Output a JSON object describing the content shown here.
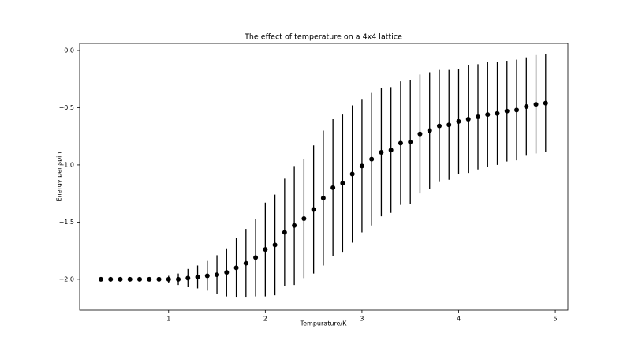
{
  "chart_data": {
    "type": "scatter",
    "title": "The effect of temperature on a 4x4 lattice",
    "x_label": "Tempurature/K",
    "y_label": "Energy per spin",
    "color": "#000000",
    "x": [
      0.3,
      0.4,
      0.5,
      0.6,
      0.7,
      0.8,
      0.9,
      1.0,
      1.1,
      1.2,
      1.3,
      1.4,
      1.5,
      1.6,
      1.7,
      1.8,
      1.9,
      2.0,
      2.1,
      2.2,
      2.3,
      2.4,
      2.5,
      2.6,
      2.7,
      2.8,
      2.9,
      3.0,
      3.1,
      3.2,
      3.3,
      3.4,
      3.5,
      3.6,
      3.7,
      3.8,
      3.9,
      4.0,
      4.1,
      4.2,
      4.3,
      4.4,
      4.5,
      4.6,
      4.7,
      4.8,
      4.9
    ],
    "values": [
      -2.0,
      -2.0,
      -2.0,
      -2.0,
      -2.0,
      -2.0,
      -2.0,
      -2.0,
      -2.0,
      -1.99,
      -1.98,
      -1.97,
      -1.96,
      -1.94,
      -1.9,
      -1.86,
      -1.81,
      -1.74,
      -1.7,
      -1.59,
      -1.53,
      -1.47,
      -1.39,
      -1.29,
      -1.2,
      -1.16,
      -1.08,
      -1.01,
      -0.95,
      -0.89,
      -0.87,
      -0.81,
      -0.8,
      -0.73,
      -0.7,
      -0.66,
      -0.65,
      -0.62,
      -0.6,
      -0.58,
      -0.56,
      -0.55,
      -0.53,
      -0.52,
      -0.49,
      -0.47,
      -0.46
    ],
    "errors": [
      0,
      0,
      0,
      0,
      0,
      0,
      0.02,
      0.03,
      0.05,
      0.08,
      0.1,
      0.13,
      0.17,
      0.21,
      0.26,
      0.3,
      0.34,
      0.41,
      0.44,
      0.47,
      0.52,
      0.52,
      0.56,
      0.59,
      0.6,
      0.6,
      0.6,
      0.58,
      0.58,
      0.56,
      0.55,
      0.54,
      0.54,
      0.52,
      0.51,
      0.49,
      0.48,
      0.46,
      0.47,
      0.46,
      0.46,
      0.45,
      0.44,
      0.44,
      0.43,
      0.43,
      0.43
    ],
    "xlim": [
      0.08,
      5.13
    ],
    "ylim": [
      -2.27,
      0.062
    ],
    "xticks": [
      1,
      2,
      3,
      4,
      5
    ],
    "yticks": [
      {
        "value": 0,
        "label": "0.0"
      },
      {
        "value": -0.5,
        "label": "−0.5"
      },
      {
        "value": -1.0,
        "label": "−1.0"
      },
      {
        "value": -1.5,
        "label": "−1.5"
      },
      {
        "value": -2.0,
        "label": "−2.0"
      }
    ]
  }
}
